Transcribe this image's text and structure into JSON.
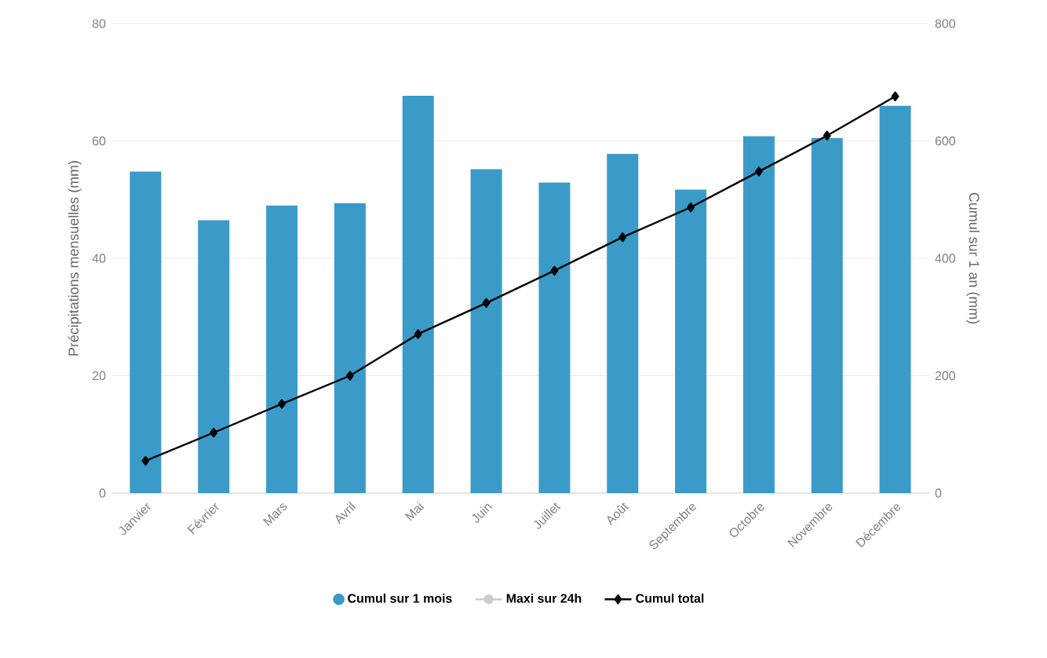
{
  "chart_data": {
    "type": "bar",
    "ylabel": "Précipitations mensuelles (mm)",
    "y2label": "Cumul sur 1 an (mm)",
    "categories": [
      "Janvier",
      "Février",
      "Mars",
      "Avril",
      "Mai",
      "Juin",
      "Juillet",
      "Août",
      "Septembre",
      "Octobre",
      "Novembre",
      "Décembre"
    ],
    "series": [
      {
        "name": "Cumul sur 1 mois",
        "color": "#3a9bc9",
        "values": [
          54.8,
          46.5,
          49,
          49.4,
          67.7,
          55.2,
          52.9,
          57.8,
          51.7,
          60.8,
          60.5,
          66
        ]
      },
      {
        "name": "Maxi sur 24h",
        "type": "line",
        "color": "#cccccc",
        "marker": "circle",
        "values": [
          null,
          null,
          null,
          null,
          null,
          null,
          null,
          null,
          null,
          null,
          null,
          null
        ]
      },
      {
        "name": "Cumul total",
        "type": "line",
        "axis": "y2",
        "color": "#000000",
        "marker": "diamond",
        "values": [
          55,
          103,
          152,
          200,
          271,
          324,
          379,
          436,
          487,
          548,
          609,
          676
        ]
      }
    ],
    "ylim": [
      0,
      80
    ],
    "yticks": [
      0,
      20,
      40,
      60,
      80
    ],
    "y2lim": [
      0,
      800
    ],
    "y2ticks": [
      0,
      200,
      400,
      600,
      800
    ],
    "grid": "y",
    "legend": "bottom"
  }
}
